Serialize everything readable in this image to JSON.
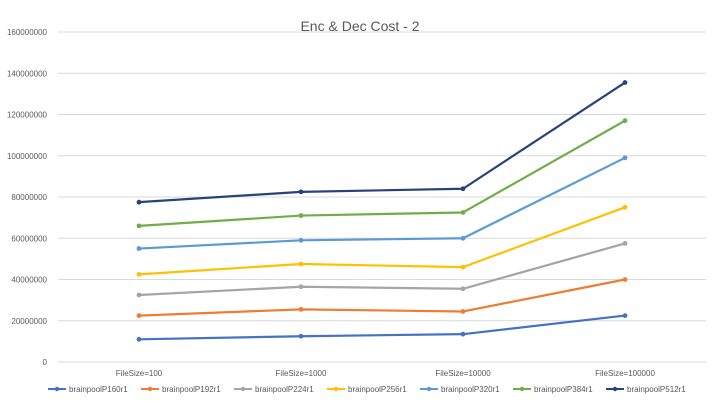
{
  "chart_data": {
    "type": "line",
    "title": "Enc & Dec Cost - 2",
    "xlabel": "",
    "ylabel": "",
    "categories": [
      "FileSize=100",
      "FileSize=1000",
      "FileSize=10000",
      "FileSize=100000"
    ],
    "ylim": [
      0,
      160000000
    ],
    "yticks": [
      0,
      20000000,
      40000000,
      60000000,
      80000000,
      100000000,
      120000000,
      140000000,
      160000000
    ],
    "grid": true,
    "legend_position": "bottom",
    "series": [
      {
        "name": "brainpoolP160r1",
        "color": "#4472C4",
        "values": [
          11000000,
          12500000,
          13500000,
          22500000
        ]
      },
      {
        "name": "brainpoolP192r1",
        "color": "#ED7D31",
        "values": [
          22500000,
          25500000,
          24500000,
          40000000
        ]
      },
      {
        "name": "brainpoolP224r1",
        "color": "#A5A5A5",
        "values": [
          32500000,
          36500000,
          35500000,
          57500000
        ]
      },
      {
        "name": "brainpoolP256r1",
        "color": "#FFC000",
        "values": [
          42500000,
          47500000,
          46000000,
          75000000
        ]
      },
      {
        "name": "brainpoolP320r1",
        "color": "#5B9BD5",
        "values": [
          55000000,
          59000000,
          60000000,
          99000000
        ]
      },
      {
        "name": "brainpoolP384r1",
        "color": "#70AD47",
        "values": [
          66000000,
          71000000,
          72500000,
          117000000
        ]
      },
      {
        "name": "brainpoolP512r1",
        "color": "#264478",
        "values": [
          77500000,
          82500000,
          84000000,
          135500000
        ]
      }
    ]
  }
}
